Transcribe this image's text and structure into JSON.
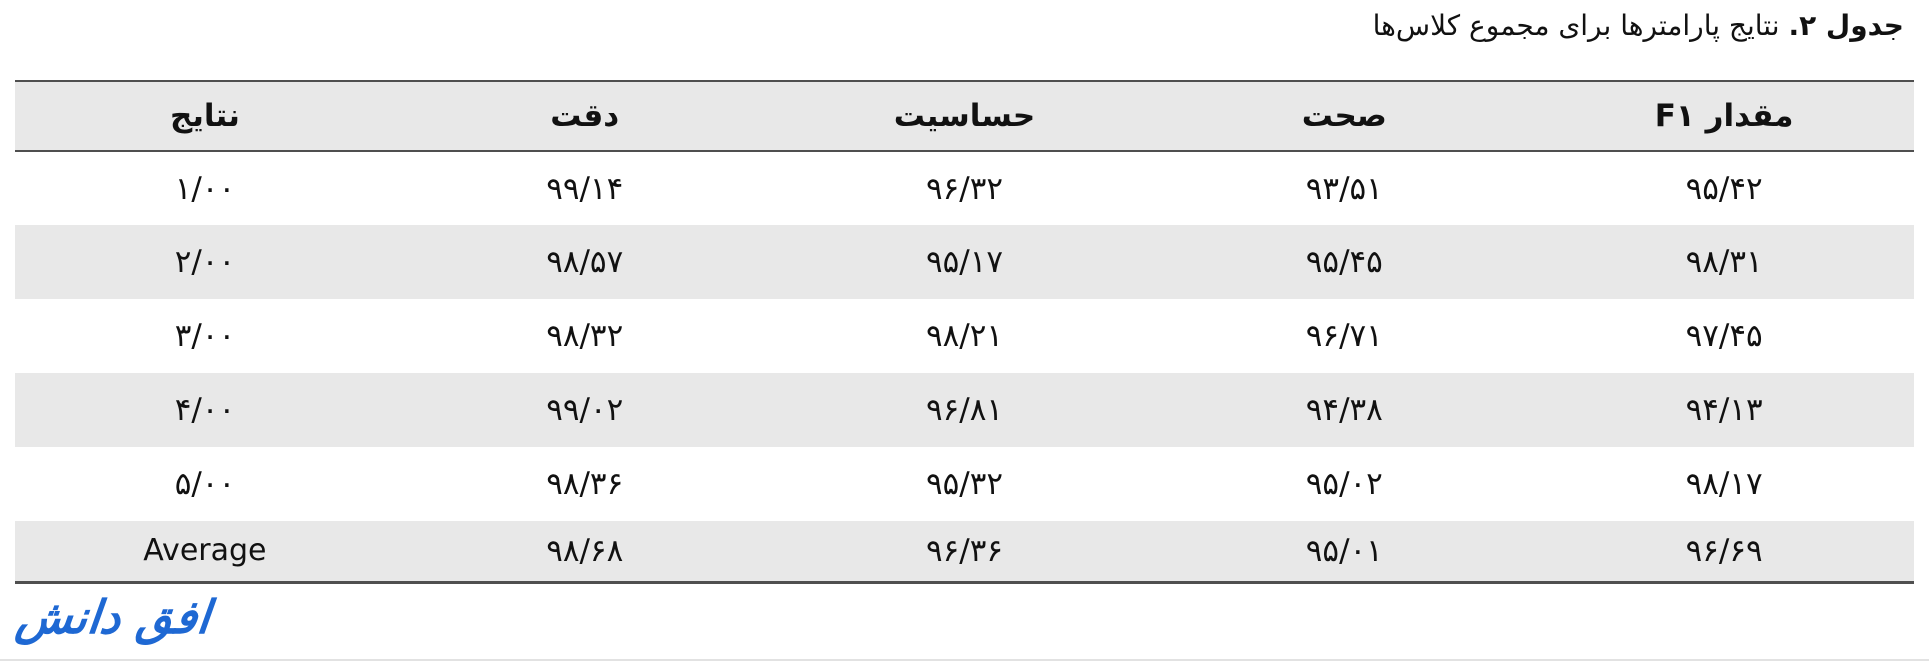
{
  "title": {
    "bold_part": "جدول ۲.",
    "rest_part": " نتایج پارامترها برای مجموع کلاس‌ها"
  },
  "table": {
    "columns": [
      {
        "key": "f1",
        "label": "مقدار F۱"
      },
      {
        "key": "accuracy",
        "label": "صحت"
      },
      {
        "key": "sensitivity",
        "label": "حساسیت"
      },
      {
        "key": "precision",
        "label": "دقت"
      },
      {
        "key": "results",
        "label": "نتایج"
      }
    ],
    "rows": [
      {
        "cells": [
          "۹۵/۴۲",
          "۹۳/۵۱",
          "۹۶/۳۲",
          "۹۹/۱۴",
          "۱/۰۰"
        ]
      },
      {
        "cells": [
          "۹۸/۳۱",
          "۹۵/۴۵",
          "۹۵/۱۷",
          "۹۸/۵۷",
          "۲/۰۰"
        ]
      },
      {
        "cells": [
          "۹۷/۴۵",
          "۹۶/۷۱",
          "۹۸/۲۱",
          "۹۸/۳۲",
          "۳/۰۰"
        ]
      },
      {
        "cells": [
          "۹۴/۱۳",
          "۹۴/۳۸",
          "۹۶/۸۱",
          "۹۹/۰۲",
          "۴/۰۰"
        ]
      },
      {
        "cells": [
          "۹۸/۱۷",
          "۹۵/۰۲",
          "۹۵/۳۲",
          "۹۸/۳۶",
          "۵/۰۰"
        ]
      },
      {
        "cells": [
          "۹۶/۶۹",
          "۹۵/۰۱",
          "۹۶/۳۶",
          "۹۸/۶۸",
          "Average"
        ]
      }
    ]
  },
  "footer": {
    "logo_text": "افق دانش",
    "logo_color": "#1e68d3"
  },
  "colors": {
    "stripe_gray": "#e8e8e8",
    "rule_gray": "#4f4f4f",
    "text": "#111111"
  }
}
